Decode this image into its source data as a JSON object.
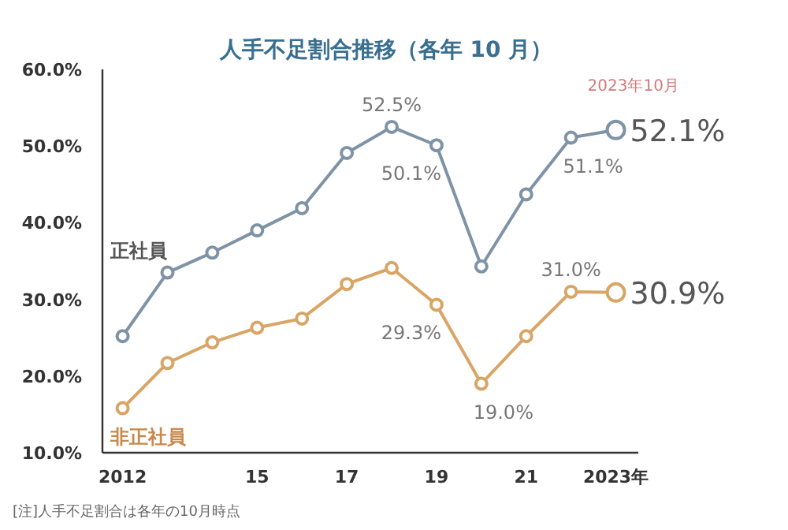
{
  "chart_data": {
    "type": "line",
    "title": "人手不足割合推移（各年 10 月）",
    "x": [
      2012,
      2013,
      2014,
      2015,
      2016,
      2017,
      2018,
      2019,
      2020,
      2021,
      2022,
      2023
    ],
    "series": [
      {
        "name": "正社員",
        "color": "#7f93a6",
        "values": [
          25.2,
          33.5,
          36.1,
          39.0,
          41.9,
          49.1,
          52.5,
          50.1,
          34.3,
          43.7,
          51.1,
          52.1
        ],
        "value_labels": [
          null,
          null,
          null,
          null,
          null,
          null,
          "52.5%",
          "50.1%",
          null,
          null,
          "51.1%",
          "52.1%"
        ]
      },
      {
        "name": "非正社員",
        "color": "#d9a566",
        "values": [
          15.8,
          21.7,
          24.4,
          26.3,
          27.5,
          32.0,
          34.1,
          29.3,
          19.0,
          25.2,
          31.0,
          30.9
        ],
        "value_labels": [
          null,
          null,
          null,
          null,
          null,
          null,
          null,
          "29.3%",
          "19.0%",
          null,
          "31.0%",
          "30.9%"
        ]
      }
    ],
    "xlim": [
      2011.55,
      2023.5
    ],
    "xticks": [
      {
        "value": 2012,
        "label": "2012"
      },
      {
        "value": 2015,
        "label": "15"
      },
      {
        "value": 2017,
        "label": "17"
      },
      {
        "value": 2019,
        "label": "19"
      },
      {
        "value": 2021,
        "label": "21"
      },
      {
        "value": 2023,
        "label": "2023年"
      }
    ],
    "ylim": [
      10,
      60
    ],
    "yticks": [
      {
        "value": 10,
        "label": "10.0%"
      },
      {
        "value": 20,
        "label": "20.0%"
      },
      {
        "value": 30,
        "label": "30.0%"
      },
      {
        "value": 40,
        "label": "40.0%"
      },
      {
        "value": 50,
        "label": "50.0%"
      },
      {
        "value": 60,
        "label": "60.0%"
      }
    ],
    "marker": "circle",
    "grid": false,
    "annotations": [
      {
        "text": "2023年10月",
        "x": 2023,
        "y": 52.1
      },
      "[注]人手不足割合は各年の10月時点"
    ]
  }
}
